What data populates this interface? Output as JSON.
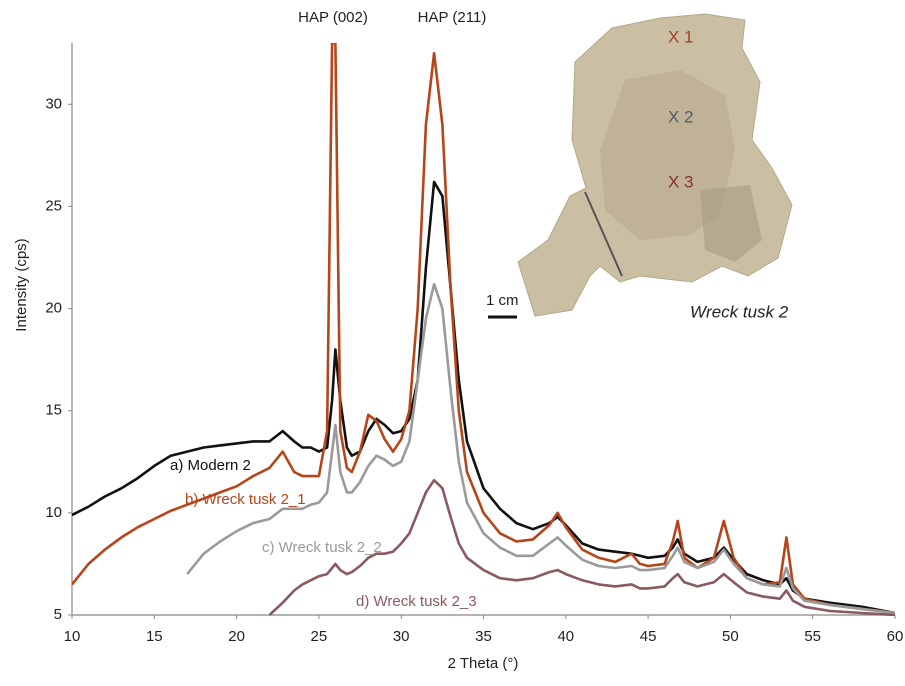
{
  "chart_data": {
    "type": "line",
    "x_label": "2 Theta (°)",
    "y_label": "Intensity  (cps)",
    "annotations": [
      "HAP (002)",
      "HAP (211)"
    ],
    "inset": {
      "markers": [
        "X 1",
        "X 2",
        "X 3"
      ],
      "scale_label": "1 cm",
      "caption": "Wreck tusk 2"
    },
    "xlim": [
      10,
      60
    ],
    "xticks": [
      10,
      15,
      20,
      25,
      30,
      35,
      40,
      45,
      50,
      55,
      60
    ],
    "ylim": [
      5,
      33
    ],
    "yticks": [
      5,
      10,
      15,
      20,
      25,
      30
    ],
    "grid": false,
    "x": [
      10,
      11,
      12,
      13,
      14,
      15,
      16,
      17,
      18,
      19,
      20,
      21,
      22,
      22.8,
      23.5,
      24,
      24.5,
      25,
      25.5,
      25.8,
      26,
      26.3,
      26.7,
      27,
      27.5,
      28,
      28.5,
      29,
      29.5,
      30,
      30.5,
      31,
      31.5,
      32,
      32.5,
      33,
      33.5,
      34,
      35,
      36,
      37,
      38,
      39,
      39.5,
      40,
      41,
      42,
      43,
      44,
      44.5,
      45,
      46,
      46.5,
      46.8,
      47.2,
      48,
      49,
      49.6,
      50.2,
      51,
      52,
      53,
      53.4,
      53.8,
      54.5,
      56,
      58,
      60
    ],
    "series": [
      {
        "name": "a) Modern 2",
        "color": "#111111",
        "values": [
          9.9,
          10.3,
          10.8,
          11.2,
          11.7,
          12.3,
          12.8,
          13.0,
          13.2,
          13.3,
          13.4,
          13.5,
          13.5,
          14.0,
          13.5,
          13.2,
          13.2,
          13.0,
          13.2,
          15.5,
          18.0,
          15.5,
          13.2,
          12.8,
          13.0,
          14.0,
          14.6,
          14.3,
          13.9,
          14.0,
          14.6,
          16.5,
          22,
          26.2,
          25.5,
          21,
          16.5,
          13.5,
          11.2,
          10.2,
          9.5,
          9.2,
          9.5,
          9.8,
          9.4,
          8.5,
          8.2,
          8.1,
          8.0,
          7.9,
          7.8,
          7.9,
          8.3,
          8.7,
          8.0,
          7.6,
          7.8,
          8.3,
          7.7,
          7.0,
          6.7,
          6.5,
          6.8,
          6.2,
          5.8,
          5.6,
          5.4,
          5.1
        ]
      },
      {
        "name": "b) Wreck tusk 2_1",
        "color": "#b5451b",
        "values": [
          6.5,
          7.5,
          8.2,
          8.8,
          9.3,
          9.7,
          10.1,
          10.4,
          10.7,
          11.0,
          11.3,
          11.8,
          12.2,
          13.0,
          12.0,
          11.8,
          11.8,
          11.8,
          14,
          33,
          33,
          14,
          12.2,
          12.0,
          13.0,
          14.8,
          14.5,
          13.6,
          13.0,
          13.6,
          15,
          20,
          29,
          32.5,
          29,
          21,
          15,
          12,
          10.0,
          9.0,
          8.6,
          8.7,
          9.4,
          10.0,
          9.3,
          8.2,
          7.8,
          7.6,
          8.0,
          7.5,
          7.4,
          7.5,
          8.6,
          9.6,
          7.8,
          7.3,
          7.8,
          9.6,
          7.8,
          6.8,
          6.5,
          6.6,
          8.8,
          6.5,
          5.8,
          5.5,
          5.3,
          5.1
        ]
      },
      {
        "name": "c) Wreck tusk 2_2",
        "color": "#9a9a9a",
        "values": [
          null,
          null,
          null,
          null,
          null,
          null,
          null,
          7.0,
          8.0,
          8.6,
          9.1,
          9.5,
          9.7,
          10.2,
          10.2,
          10.2,
          10.4,
          10.5,
          11.0,
          13.0,
          14.3,
          12.0,
          11.0,
          11.0,
          11.5,
          12.3,
          12.8,
          12.6,
          12.3,
          12.5,
          13.5,
          16.5,
          19.5,
          21.2,
          20,
          16,
          12.5,
          10.5,
          9.0,
          8.3,
          7.9,
          7.9,
          8.5,
          8.8,
          8.4,
          7.7,
          7.4,
          7.3,
          7.4,
          7.2,
          7.2,
          7.3,
          7.9,
          8.3,
          7.6,
          7.3,
          7.6,
          8.2,
          7.5,
          6.8,
          6.5,
          6.4,
          7.3,
          6.3,
          5.7,
          5.5,
          5.3,
          5.1
        ]
      },
      {
        "name": "d) Wreck tusk 2_3",
        "color": "#8b5a5f",
        "values": [
          null,
          null,
          null,
          null,
          null,
          null,
          null,
          null,
          null,
          null,
          null,
          null,
          5.0,
          5.6,
          6.2,
          6.5,
          6.7,
          6.9,
          7.0,
          7.3,
          7.5,
          7.2,
          7.0,
          7.1,
          7.4,
          7.8,
          8.0,
          8.0,
          8.1,
          8.5,
          9.0,
          10.0,
          11.0,
          11.6,
          11.2,
          9.8,
          8.5,
          7.8,
          7.2,
          6.8,
          6.7,
          6.8,
          7.1,
          7.2,
          7.0,
          6.7,
          6.5,
          6.4,
          6.5,
          6.3,
          6.3,
          6.4,
          6.8,
          7.0,
          6.6,
          6.4,
          6.6,
          7.0,
          6.6,
          6.1,
          5.9,
          5.8,
          6.2,
          5.7,
          5.4,
          5.2,
          5.1,
          5.0
        ]
      }
    ]
  }
}
